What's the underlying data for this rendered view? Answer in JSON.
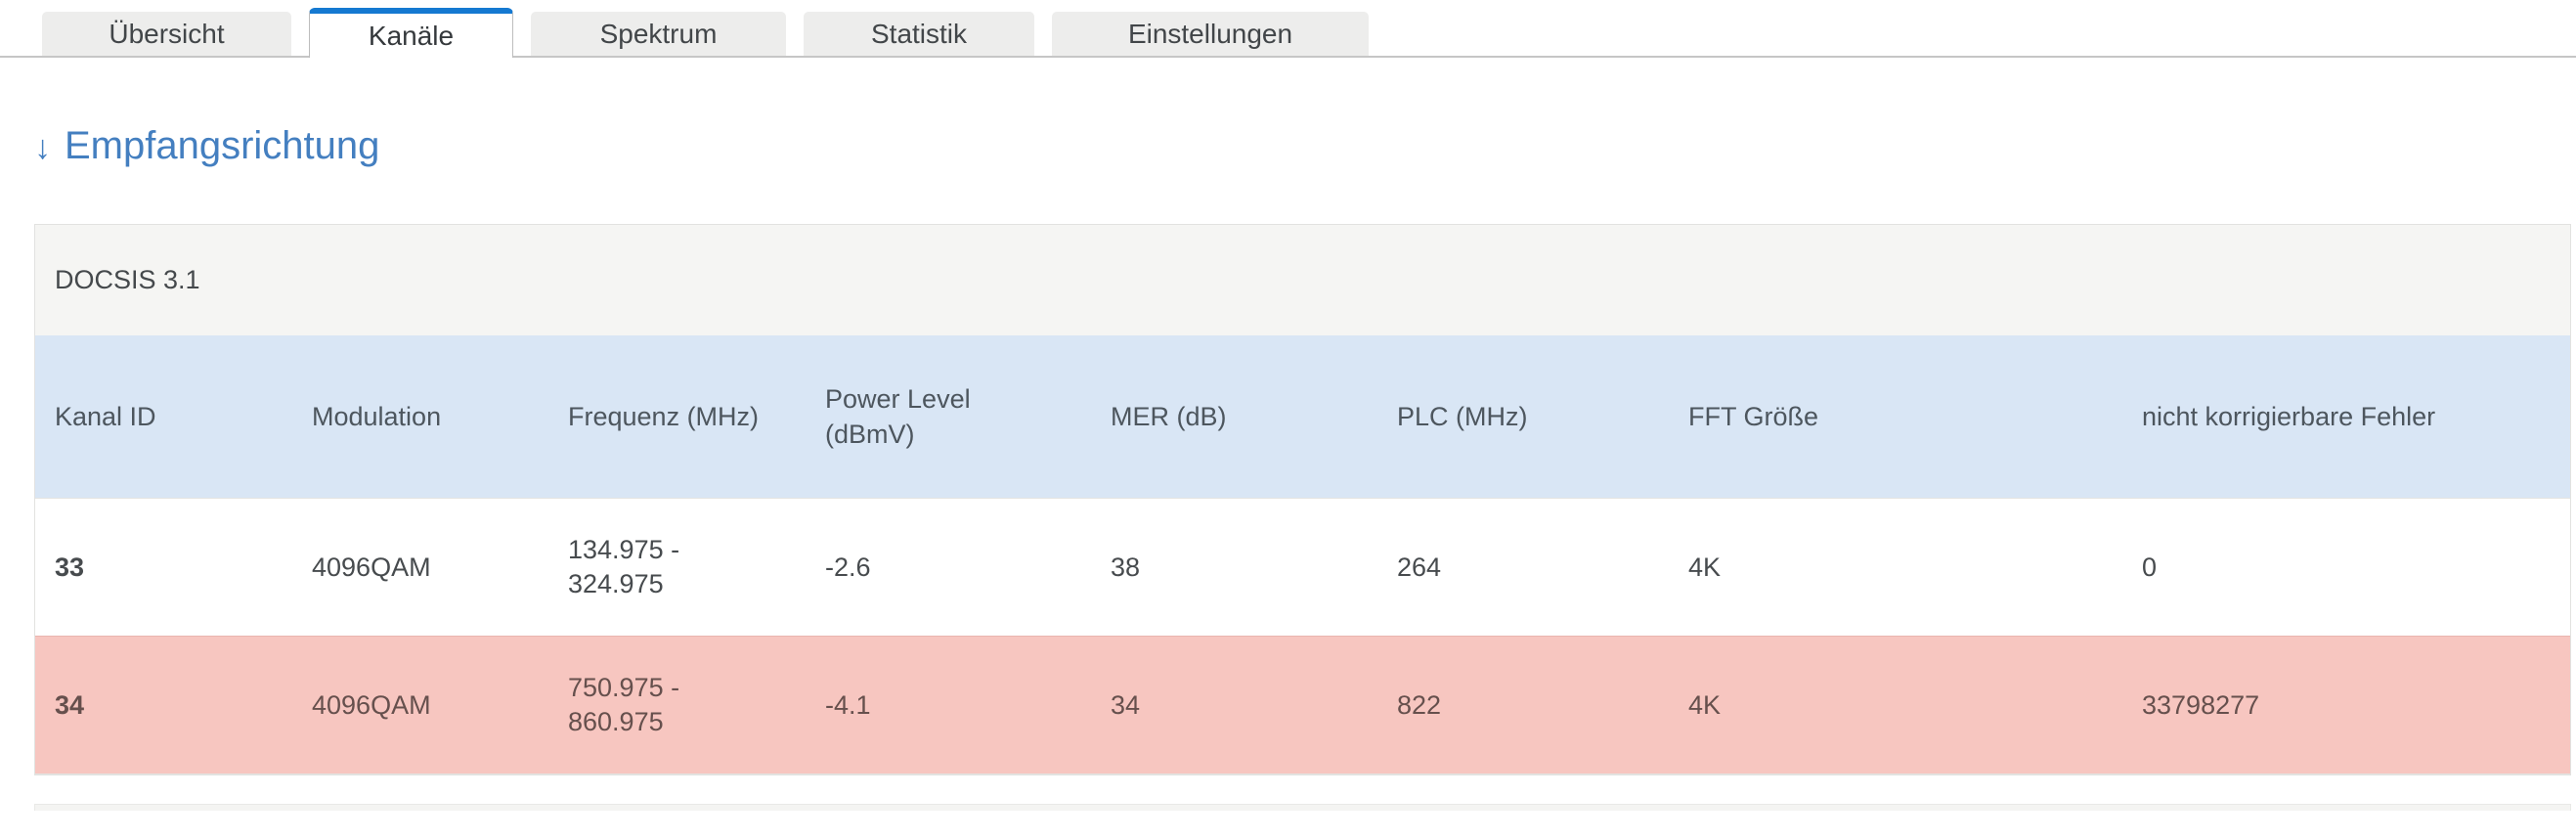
{
  "tabs": {
    "items": [
      {
        "label": "Übersicht",
        "active": false
      },
      {
        "label": "Kanäle",
        "active": true
      },
      {
        "label": "Spektrum",
        "active": false
      },
      {
        "label": "Statistik",
        "active": false
      },
      {
        "label": "Einstellungen",
        "active": false
      }
    ]
  },
  "heading": {
    "arrow": "↓",
    "label": "Empfangsrichtung"
  },
  "table": {
    "caption": "DOCSIS 3.1",
    "columns": [
      "Kanal ID",
      "Modulation",
      "Frequenz (MHz)",
      "Power Level\n(dBmV)",
      "MER (dB)",
      "PLC (MHz)",
      "FFT Größe",
      "nicht korrigierbare Fehler"
    ],
    "rows": [
      {
        "kanal_id": "33",
        "modulation": "4096QAM",
        "frequenz": "134.975 -\n324.975",
        "power_level": "-2.6",
        "mer": "38",
        "plc": "264",
        "fft": "4K",
        "fehler": "0",
        "status": "ok"
      },
      {
        "kanal_id": "34",
        "modulation": "4096QAM",
        "frequenz": "750.975 -\n860.975",
        "power_level": "-4.1",
        "mer": "34",
        "plc": "822",
        "fft": "4K",
        "fehler": "33798277",
        "status": "error"
      }
    ]
  },
  "colors": {
    "accent_blue": "#1579d1",
    "heading_blue": "#447fc0",
    "header_row_bg": "#d9e6f5",
    "caption_bg": "#f5f5f3",
    "error_row_bg": "#f7c6c0",
    "tab_inactive_bg": "#ededec"
  }
}
